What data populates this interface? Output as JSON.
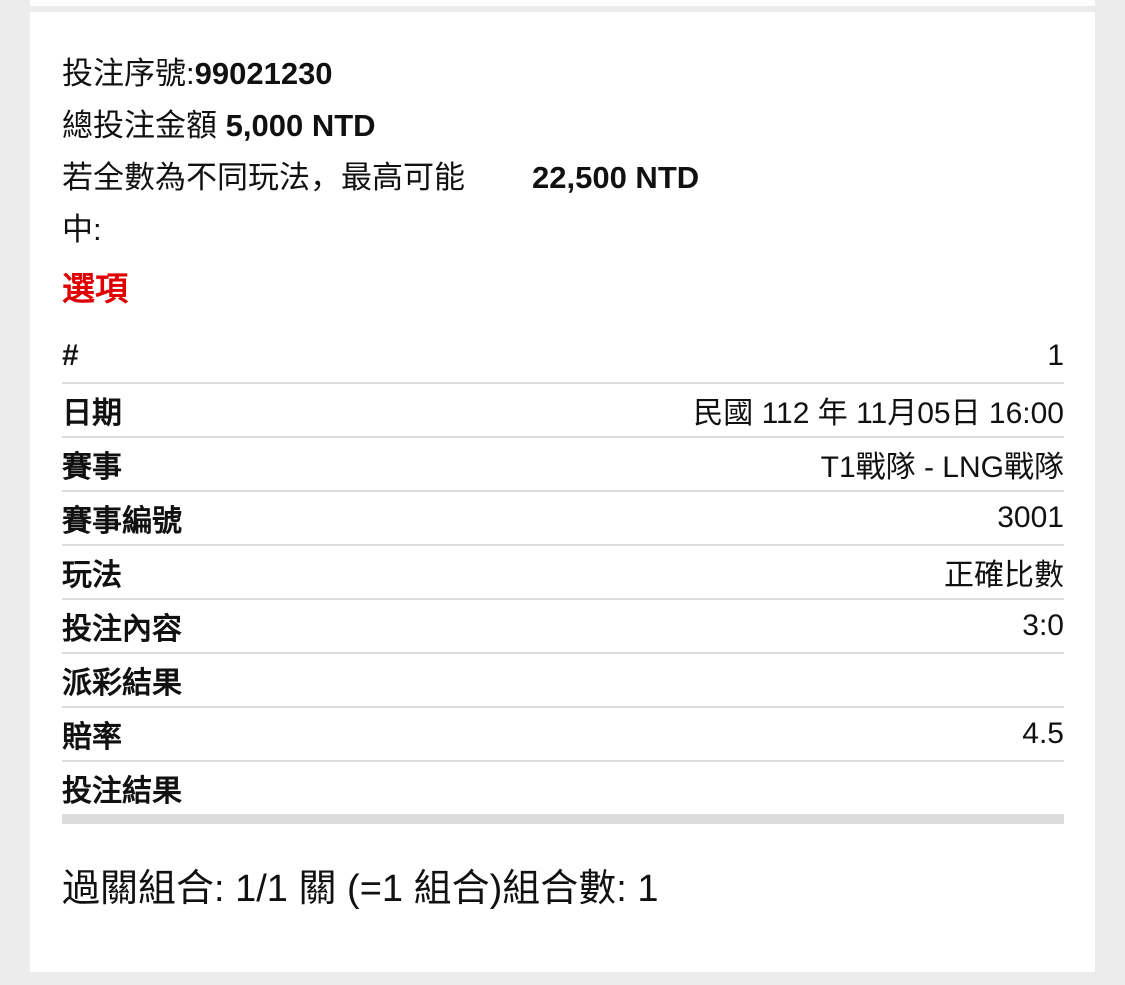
{
  "bet": {
    "serial_label": "投注序號:",
    "serial": "99021230",
    "total_label": "總投注金額",
    "total": "5,000 NTD",
    "max_label": "若全數為不同玩法，最高可能中:",
    "max_label_line1": "若全數為不同玩法，最高可能",
    "max_label_line2": "中:",
    "max_value": "22,500 NTD"
  },
  "section_title": "選項",
  "section_color": "#e00000",
  "rows": [
    {
      "label": "#",
      "value": "1"
    },
    {
      "label": "日期",
      "value": "民國 112 年 11月05日 16:00"
    },
    {
      "label": "賽事",
      "value": "T1戰隊 - LNG戰隊"
    },
    {
      "label": "賽事編號",
      "value": "3001"
    },
    {
      "label": "玩法",
      "value": "正確比數"
    },
    {
      "label": "投注內容",
      "value": "3:0"
    },
    {
      "label": "派彩結果",
      "value": ""
    },
    {
      "label": "賠率",
      "value": "4.5"
    },
    {
      "label": "投注結果",
      "value": ""
    }
  ],
  "footer": "過關組合: 1/1 關 (=1 組合)組合數: 1"
}
